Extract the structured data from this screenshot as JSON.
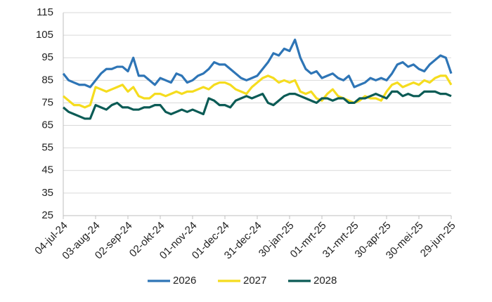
{
  "chart_data": {
    "type": "line",
    "categories": [
      "04-jul-24",
      null,
      null,
      null,
      null,
      null,
      "03-aug-24",
      null,
      null,
      null,
      null,
      null,
      "02-sep-24",
      null,
      null,
      null,
      null,
      null,
      "02-okt-24",
      null,
      null,
      null,
      null,
      null,
      "01-nov-24",
      null,
      null,
      null,
      null,
      null,
      "01-dec-24",
      null,
      null,
      null,
      null,
      null,
      "31-dec-24",
      null,
      null,
      null,
      null,
      null,
      "30-jan-25",
      null,
      null,
      null,
      null,
      null,
      "01-mrt-25",
      null,
      null,
      null,
      null,
      null,
      "31-mrt-25",
      null,
      null,
      null,
      null,
      null,
      "30-apr-25",
      null,
      null,
      null,
      null,
      null,
      "30-mei-25",
      null,
      null,
      null,
      null,
      null,
      "29-jun-25"
    ],
    "series": [
      {
        "name": "2026",
        "color": "#2e75b6",
        "values": [
          88,
          85,
          84,
          83,
          83,
          82,
          85,
          88,
          90,
          90,
          91,
          91,
          89,
          95,
          87,
          87,
          85,
          83,
          86,
          85,
          84,
          88,
          87,
          84,
          85,
          87,
          88,
          90,
          93,
          92,
          92,
          90,
          88,
          86,
          85,
          86,
          87,
          90,
          93,
          97,
          96,
          99,
          98,
          103,
          95,
          90,
          88,
          89,
          86,
          87,
          88,
          86,
          85,
          87,
          82,
          83,
          84,
          86,
          85,
          86,
          85,
          88,
          92,
          93,
          91,
          92,
          90,
          89,
          92,
          94,
          96,
          95,
          88
        ]
      },
      {
        "name": "2027",
        "color": "#f5dc1e",
        "values": [
          78,
          76,
          74,
          74,
          73,
          74,
          82,
          81,
          80,
          81,
          82,
          83,
          80,
          82,
          78,
          77,
          77,
          79,
          79,
          78,
          79,
          80,
          79,
          80,
          80,
          81,
          82,
          81,
          83,
          84,
          84,
          83,
          81,
          80,
          79,
          82,
          84,
          86,
          87,
          86,
          84,
          85,
          84,
          85,
          80,
          79,
          80,
          77,
          76,
          79,
          81,
          78,
          77,
          76,
          75,
          76,
          78,
          77,
          77,
          76,
          80,
          83,
          84,
          82,
          83,
          84,
          83,
          85,
          84,
          86,
          87,
          87,
          83
        ]
      },
      {
        "name": "2028",
        "color": "#0b5b55",
        "values": [
          73,
          71,
          70,
          69,
          68,
          68,
          74,
          73,
          72,
          74,
          75,
          73,
          73,
          72,
          72,
          73,
          73,
          74,
          74,
          71,
          70,
          71,
          72,
          71,
          72,
          71,
          70,
          77,
          76,
          74,
          74,
          73,
          76,
          77,
          78,
          77,
          78,
          79,
          75,
          74,
          76,
          78,
          79,
          79,
          78,
          77,
          76,
          75,
          77,
          77,
          76,
          77,
          77,
          75,
          75,
          77,
          77,
          78,
          79,
          78,
          77,
          80,
          80,
          78,
          79,
          78,
          78,
          80,
          80,
          80,
          79,
          79,
          78
        ]
      }
    ],
    "ylim": [
      25,
      115
    ],
    "yticks": [
      25,
      35,
      45,
      55,
      65,
      75,
      85,
      95,
      105,
      115
    ],
    "grid": true,
    "legend": "bottom"
  }
}
